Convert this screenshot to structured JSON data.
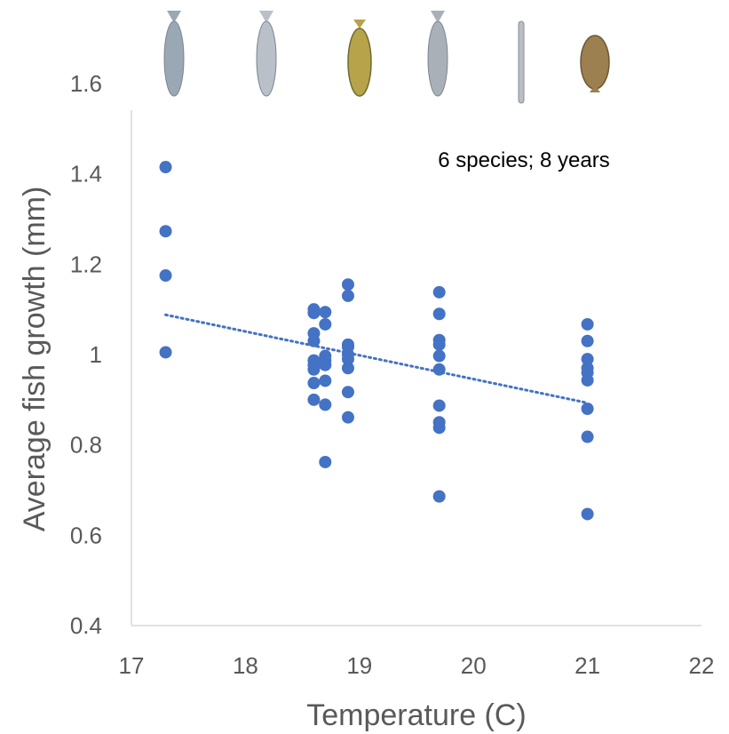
{
  "chart_data": {
    "type": "scatter",
    "title": "",
    "xlabel": "Temperature (C)",
    "ylabel": "Average fish growth (mm)",
    "xlim": [
      17,
      22
    ],
    "ylim": [
      0.4,
      1.6
    ],
    "x_ticks": [
      "17",
      "18",
      "19",
      "20",
      "21",
      "22"
    ],
    "y_ticks": [
      "0.4",
      "0.6",
      "0.8",
      "1",
      "1.2",
      "1.4",
      "1.6"
    ],
    "annotation": "6 species; 8 years",
    "grid": false,
    "legend": "none",
    "series": [
      {
        "color": "#4472C4",
        "points": [
          [
            17.3,
            1.415
          ],
          [
            17.3,
            1.273
          ],
          [
            17.3,
            1.175
          ],
          [
            17.3,
            1.005
          ],
          [
            18.6,
            1.1
          ],
          [
            18.6,
            1.092
          ],
          [
            18.6,
            1.047
          ],
          [
            18.6,
            1.03
          ],
          [
            18.6,
            0.987
          ],
          [
            18.6,
            0.977
          ],
          [
            18.6,
            0.967
          ],
          [
            18.6,
            0.937
          ],
          [
            18.6,
            0.9
          ],
          [
            18.7,
            1.094
          ],
          [
            18.7,
            1.067
          ],
          [
            18.7,
            0.997
          ],
          [
            18.7,
            0.987
          ],
          [
            18.7,
            0.977
          ],
          [
            18.7,
            0.942
          ],
          [
            18.7,
            0.889
          ],
          [
            18.7,
            0.762
          ],
          [
            18.9,
            1.155
          ],
          [
            18.9,
            1.13
          ],
          [
            18.9,
            1.022
          ],
          [
            18.9,
            1.017
          ],
          [
            18.9,
            1.0
          ],
          [
            18.9,
            0.99
          ],
          [
            18.9,
            0.97
          ],
          [
            18.9,
            0.917
          ],
          [
            18.9,
            0.861
          ],
          [
            19.7,
            1.138
          ],
          [
            19.7,
            1.09
          ],
          [
            19.7,
            1.032
          ],
          [
            19.7,
            1.022
          ],
          [
            19.7,
            0.997
          ],
          [
            19.7,
            0.967
          ],
          [
            19.7,
            0.887
          ],
          [
            19.7,
            0.85
          ],
          [
            19.7,
            0.838
          ],
          [
            19.7,
            0.686
          ],
          [
            21.0,
            1.067
          ],
          [
            21.0,
            1.03
          ],
          [
            21.0,
            0.99
          ],
          [
            21.0,
            0.97
          ],
          [
            21.0,
            0.96
          ],
          [
            21.0,
            0.943
          ],
          [
            21.0,
            0.88
          ],
          [
            21.0,
            0.818
          ],
          [
            21.0,
            0.647
          ]
        ]
      }
    ],
    "trendline": {
      "style": "dotted",
      "color": "#4472C4",
      "x": [
        17.3,
        21.0
      ],
      "y": [
        1.088,
        0.893
      ]
    },
    "decorations": {
      "fish_icons": [
        {
          "icon": "herring-icon",
          "color": "#9aa8b6"
        },
        {
          "icon": "menhaden-icon",
          "color": "#b9c0c8"
        },
        {
          "icon": "sea-bass-icon",
          "color": "#b7a34a"
        },
        {
          "icon": "butterfish-icon",
          "color": "#a9b0b8"
        },
        {
          "icon": "sand-lance-icon",
          "color": "#b8bec4"
        },
        {
          "icon": "flounder-icon",
          "color": "#9c8050"
        }
      ]
    }
  }
}
